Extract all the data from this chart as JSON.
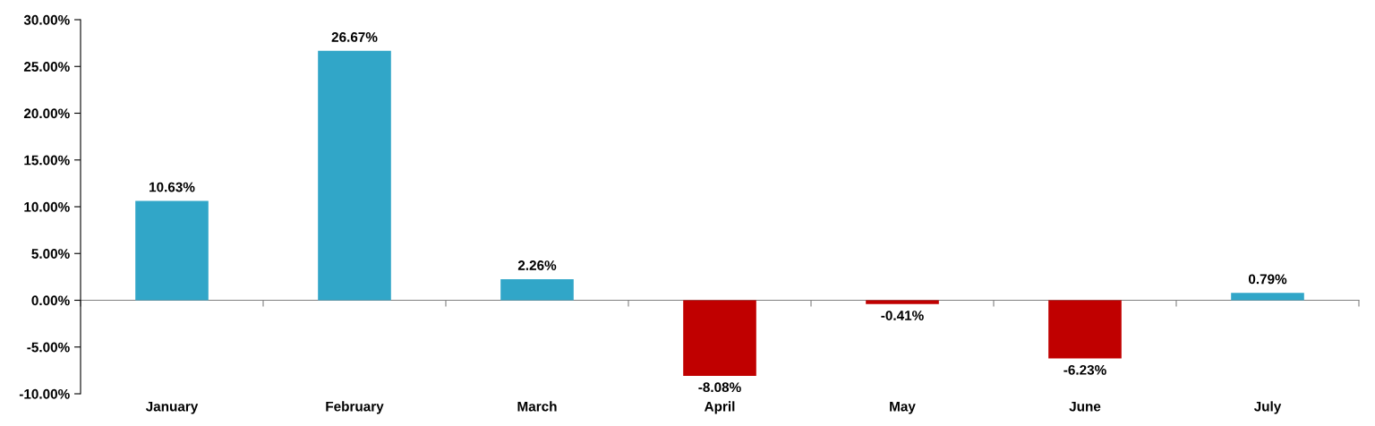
{
  "chart_data": {
    "type": "bar",
    "categories": [
      "January",
      "February",
      "March",
      "April",
      "May",
      "June",
      "July"
    ],
    "values": [
      10.63,
      26.67,
      2.26,
      -8.08,
      -0.41,
      -6.23,
      0.79
    ],
    "value_labels": [
      "10.63%",
      "26.67%",
      "2.26%",
      "-8.08%",
      "-0.41%",
      "-6.23%",
      "0.79%"
    ],
    "colors": [
      "#31a6c8",
      "#31a6c8",
      "#31a6c8",
      "#c00000",
      "#c00000",
      "#c00000",
      "#31a6c8"
    ],
    "ylim": [
      -10,
      30
    ],
    "yticks": [
      {
        "value": -10,
        "label": "-10.00%"
      },
      {
        "value": -5,
        "label": "-5.00%"
      },
      {
        "value": 0,
        "label": "0.00%"
      },
      {
        "value": 5,
        "label": "5.00%"
      },
      {
        "value": 10,
        "label": "10.00%"
      },
      {
        "value": 15,
        "label": "15.00%"
      },
      {
        "value": 20,
        "label": "20.00%"
      },
      {
        "value": 25,
        "label": "25.00%"
      },
      {
        "value": 30,
        "label": "30.00%"
      }
    ],
    "legend": false
  }
}
